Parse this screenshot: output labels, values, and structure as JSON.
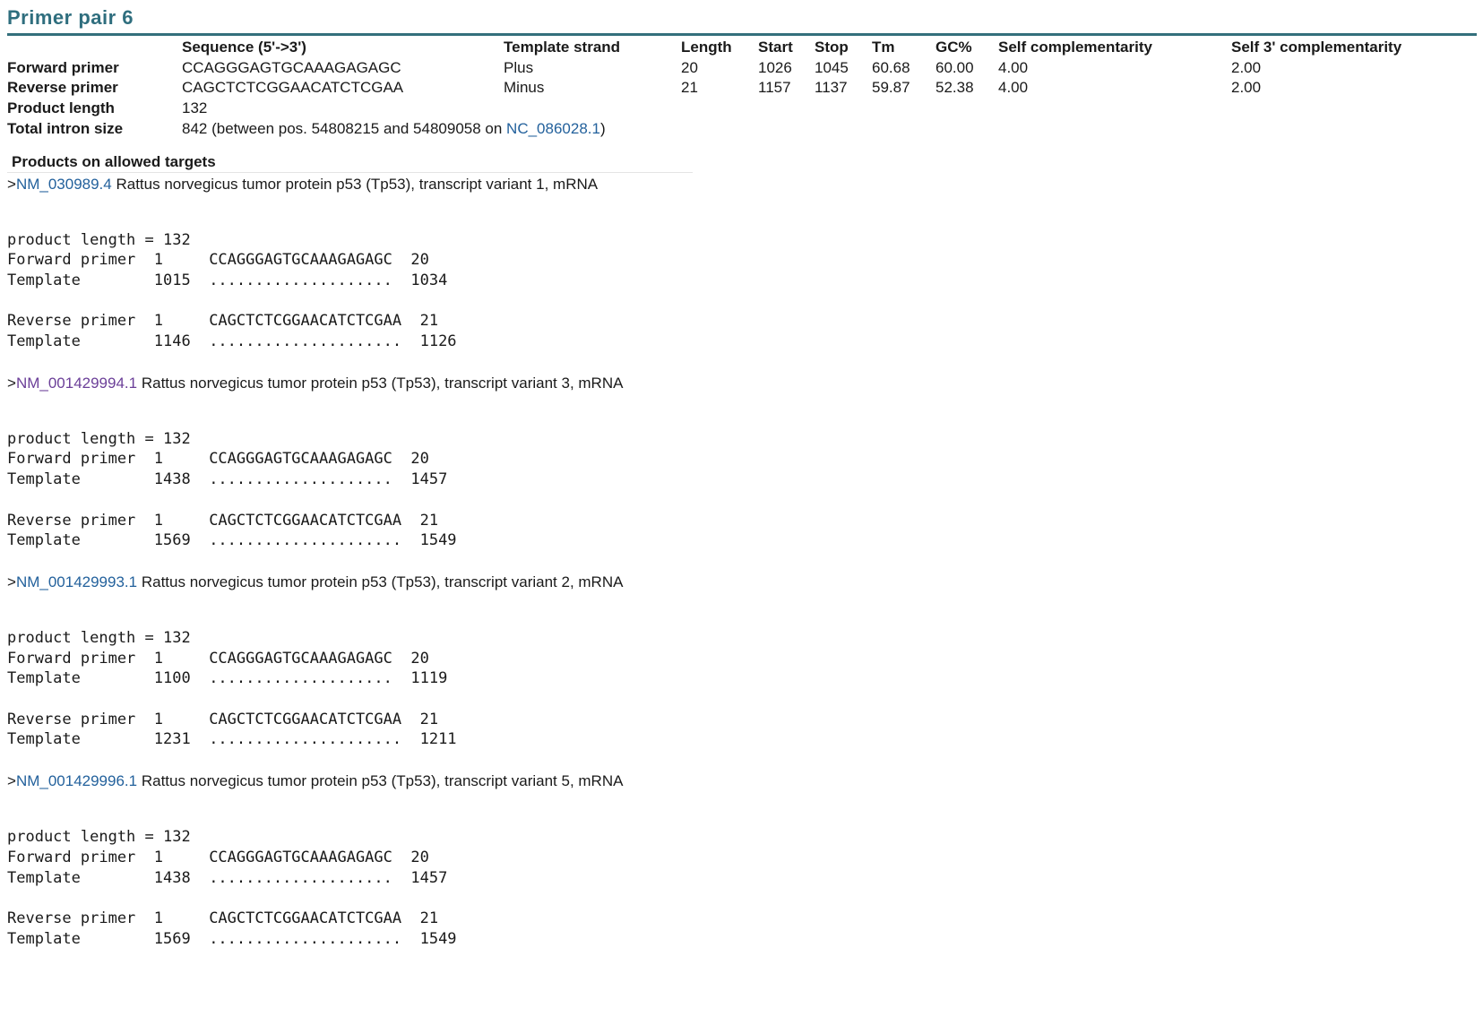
{
  "title": "Primer pair 6",
  "table": {
    "headers": [
      "",
      "Sequence (5'->3')",
      "Template strand",
      "Length",
      "Start",
      "Stop",
      "Tm",
      "GC%",
      "Self complementarity",
      "Self 3' complementarity"
    ],
    "forward": [
      "Forward primer",
      "CCAGGGAGTGCAAAGAGAGC",
      "Plus",
      "20",
      "1026",
      "1045",
      "60.68",
      "60.00",
      "4.00",
      "2.00"
    ],
    "reverse": [
      "Reverse primer",
      "CAGCTCTCGGAACATCTCGAA",
      "Minus",
      "21",
      "1157",
      "1137",
      "59.87",
      "52.38",
      "4.00",
      "2.00"
    ],
    "product_length": {
      "label": "Product length",
      "value": "132"
    },
    "intron": {
      "label": "Total intron size",
      "text_before": "842 (between pos. 54808215 and 54809058 on ",
      "link": "NC_086028.1",
      "text_after": ")"
    }
  },
  "products_heading": "Products on allowed targets",
  "targets": [
    {
      "prefix": ">",
      "accession": "NM_030989.4",
      "visited": false,
      "description": " Rattus norvegicus tumor protein p53 (Tp53), transcript variant 1, mRNA",
      "product_length_line": "product length = 132",
      "forward": {
        "label": "Forward primer",
        "start": "1",
        "seq": "CCAGGGAGTGCAAAGAGAGC",
        "end": "20"
      },
      "forward_template": {
        "label": "Template",
        "start": "1015",
        "seq": "....................",
        "end": "1034"
      },
      "reverse": {
        "label": "Reverse primer",
        "start": "1",
        "seq": "CAGCTCTCGGAACATCTCGAA",
        "end": "21"
      },
      "reverse_template": {
        "label": "Template",
        "start": "1146",
        "seq": ".....................",
        "end": "1126"
      }
    },
    {
      "prefix": ">",
      "accession": "NM_001429994.1",
      "visited": true,
      "description": " Rattus norvegicus tumor protein p53 (Tp53), transcript variant 3, mRNA",
      "product_length_line": "product length = 132",
      "forward": {
        "label": "Forward primer",
        "start": "1",
        "seq": "CCAGGGAGTGCAAAGAGAGC",
        "end": "20"
      },
      "forward_template": {
        "label": "Template",
        "start": "1438",
        "seq": "....................",
        "end": "1457"
      },
      "reverse": {
        "label": "Reverse primer",
        "start": "1",
        "seq": "CAGCTCTCGGAACATCTCGAA",
        "end": "21"
      },
      "reverse_template": {
        "label": "Template",
        "start": "1569",
        "seq": ".....................",
        "end": "1549"
      }
    },
    {
      "prefix": ">",
      "accession": "NM_001429993.1",
      "visited": false,
      "description": " Rattus norvegicus tumor protein p53 (Tp53), transcript variant 2, mRNA",
      "product_length_line": "product length = 132",
      "forward": {
        "label": "Forward primer",
        "start": "1",
        "seq": "CCAGGGAGTGCAAAGAGAGC",
        "end": "20"
      },
      "forward_template": {
        "label": "Template",
        "start": "1100",
        "seq": "....................",
        "end": "1119"
      },
      "reverse": {
        "label": "Reverse primer",
        "start": "1",
        "seq": "CAGCTCTCGGAACATCTCGAA",
        "end": "21"
      },
      "reverse_template": {
        "label": "Template",
        "start": "1231",
        "seq": ".....................",
        "end": "1211"
      }
    },
    {
      "prefix": ">",
      "accession": "NM_001429996.1",
      "visited": false,
      "description": " Rattus norvegicus tumor protein p53 (Tp53), transcript variant 5, mRNA",
      "product_length_line": "product length = 132",
      "forward": {
        "label": "Forward primer",
        "start": "1",
        "seq": "CCAGGGAGTGCAAAGAGAGC",
        "end": "20"
      },
      "forward_template": {
        "label": "Template",
        "start": "1438",
        "seq": "....................",
        "end": "1457"
      },
      "reverse": {
        "label": "Reverse primer",
        "start": "1",
        "seq": "CAGCTCTCGGAACATCTCGAA",
        "end": "21"
      },
      "reverse_template": {
        "label": "Template",
        "start": "1569",
        "seq": ".....................",
        "end": "1549"
      }
    }
  ]
}
